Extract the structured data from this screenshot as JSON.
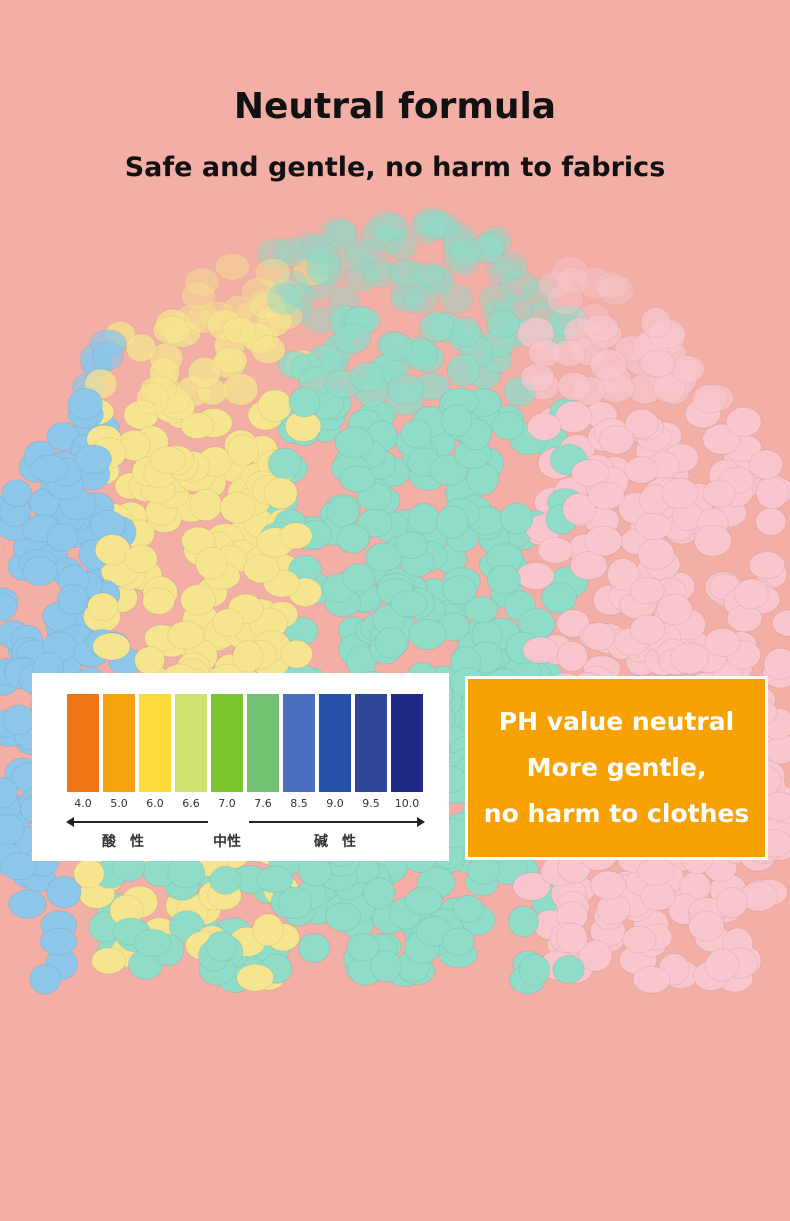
{
  "header": {
    "title": "Neutral formula",
    "subtitle": "Safe and gentle, no harm to fabrics"
  },
  "ph_chart": {
    "scale": [
      {
        "value": "4.0",
        "color": "#ef7414"
      },
      {
        "value": "5.0",
        "color": "#f7a20c"
      },
      {
        "value": "6.0",
        "color": "#fbdb3a"
      },
      {
        "value": "6.6",
        "color": "#cfe06f"
      },
      {
        "value": "7.0",
        "color": "#7cc42d"
      },
      {
        "value": "7.6",
        "color": "#72c274"
      },
      {
        "value": "8.5",
        "color": "#4a6fc2"
      },
      {
        "value": "9.0",
        "color": "#2752ac"
      },
      {
        "value": "9.5",
        "color": "#2f4799"
      },
      {
        "value": "10.0",
        "color": "#1e2a85"
      }
    ],
    "acid_label": "酸　性",
    "neutral_label": "中性",
    "alkaline_label": "碱　性"
  },
  "callout": {
    "lines": [
      "PH value neutral",
      "More gentle,",
      "no harm to clothes"
    ],
    "color": "#f7a200"
  }
}
